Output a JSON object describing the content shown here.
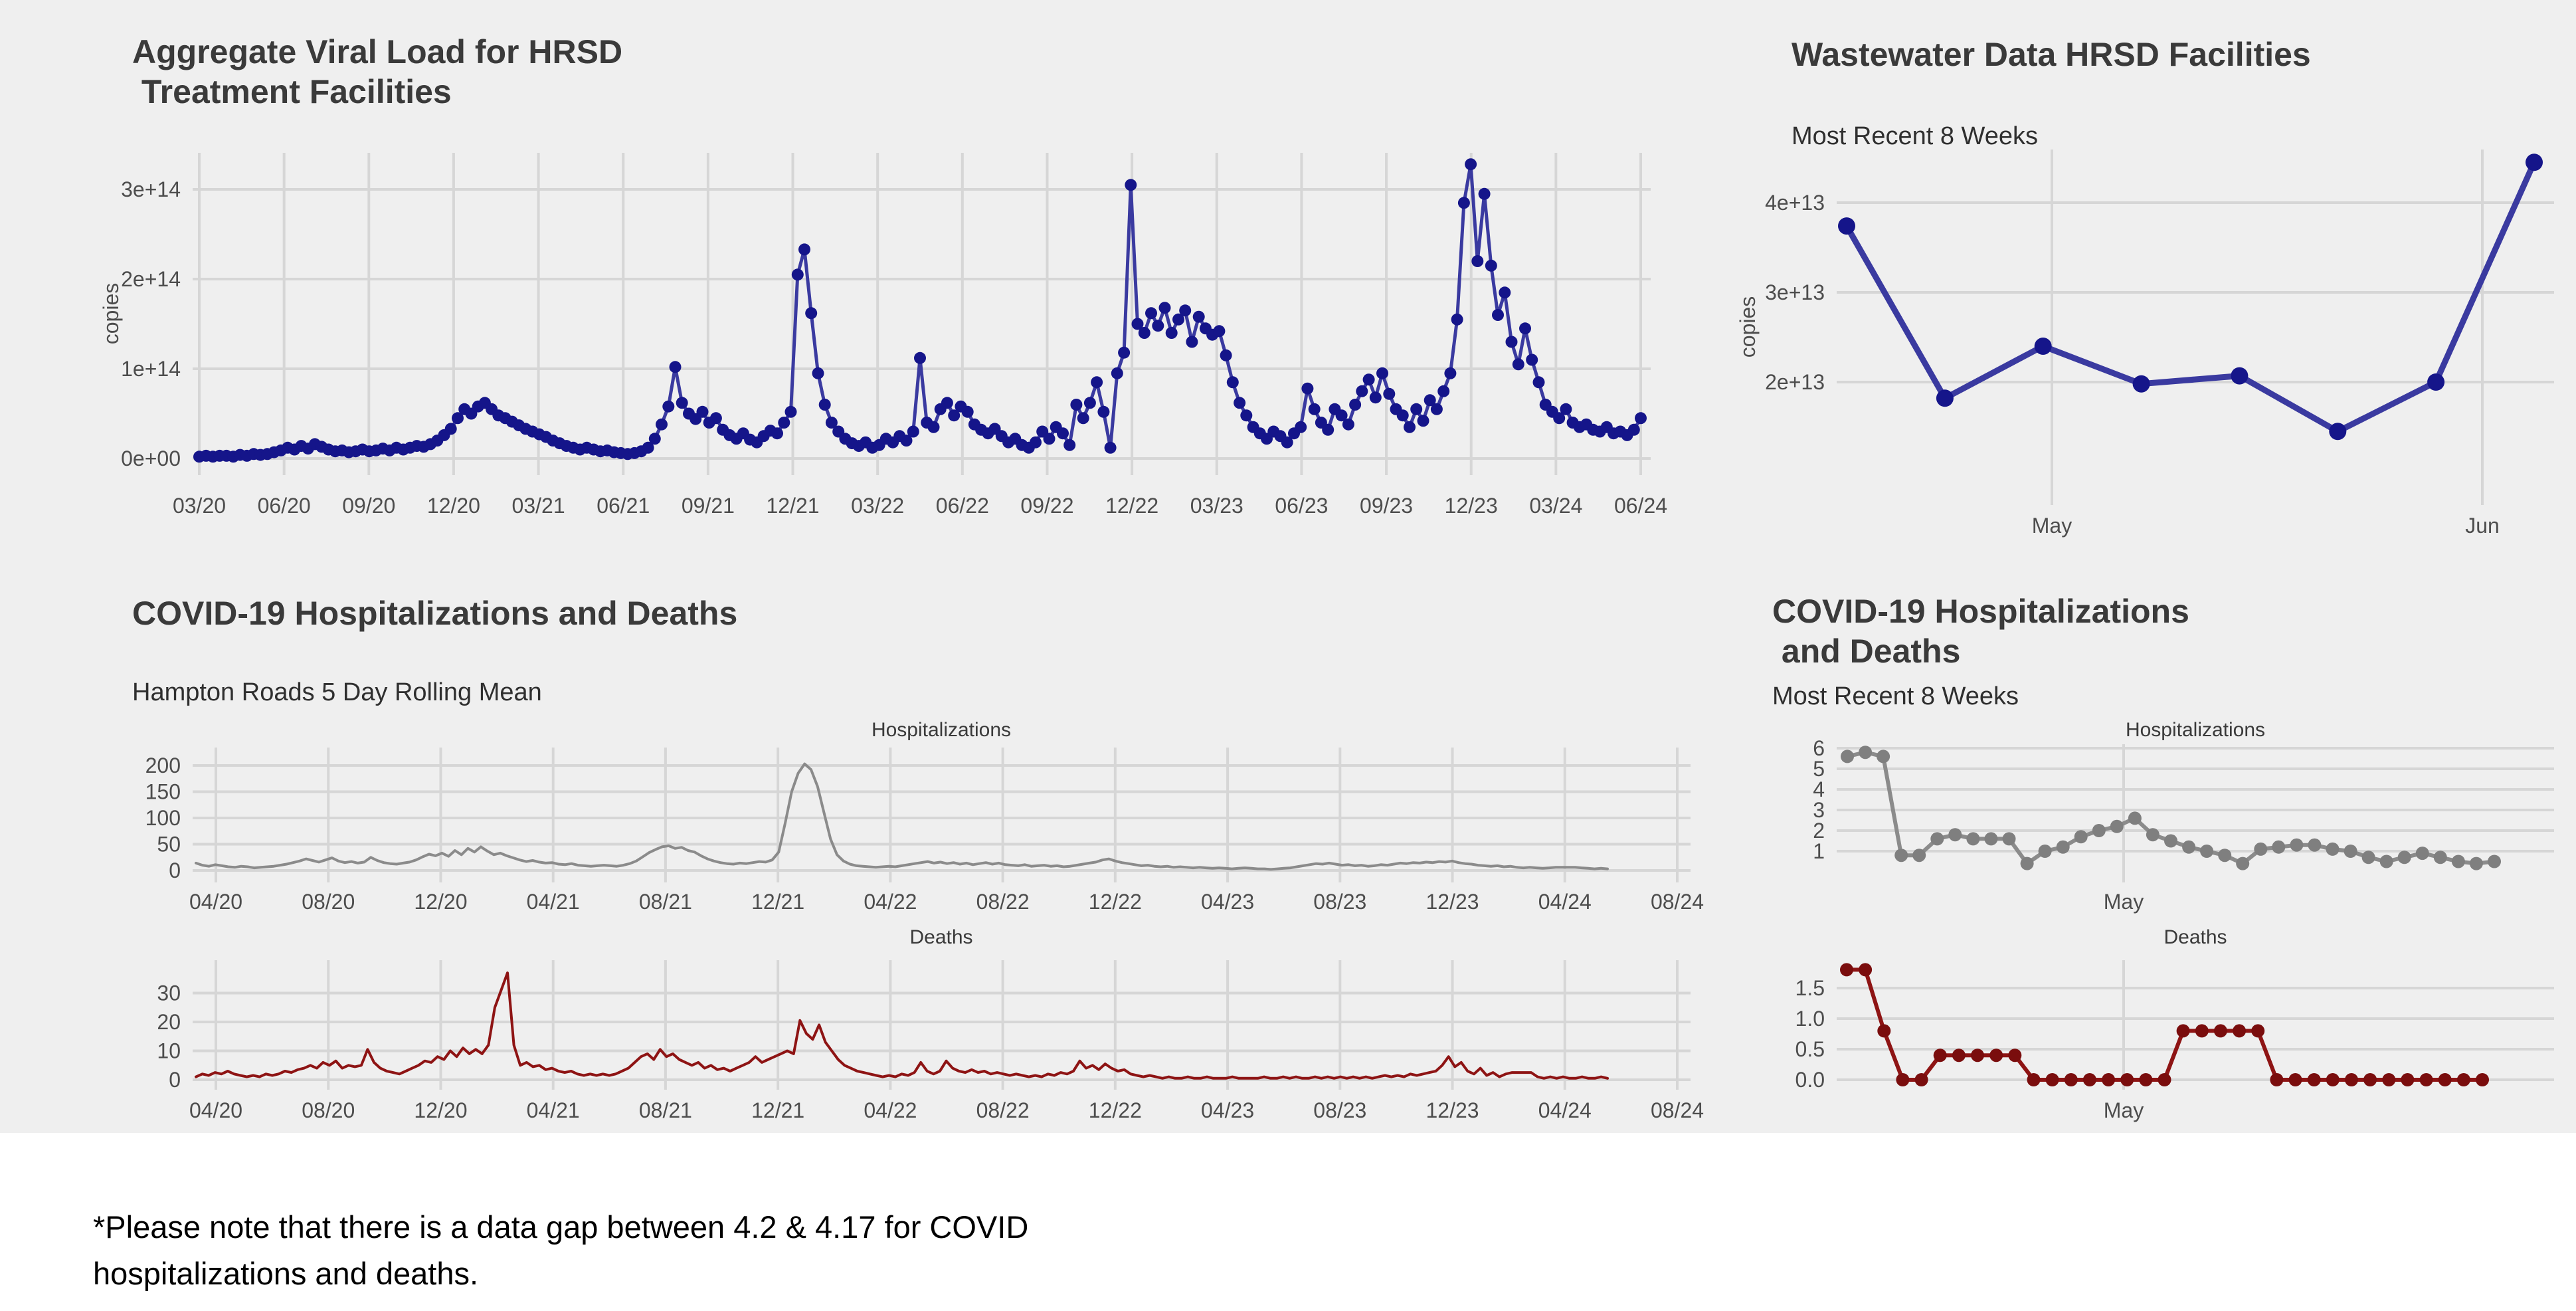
{
  "page": {
    "dashboard_bg": "#efefef",
    "grid_color": "#d6d6d6",
    "title_color": "#3a3a3a",
    "tick_color": "#4d4d4d",
    "navy_line": "#3a3aa0",
    "navy_point": "#15158a",
    "gray_line": "#8b8b8b",
    "gray_point": "#7f7f7f",
    "red_line": "#8e1414",
    "red_point": "#7a0d0d"
  },
  "chart_data": {
    "viral_load": {
      "type": "line",
      "title_line1": "Aggregate Viral Load for HRSD",
      "title_line2": " Treatment Facilities",
      "ylabel": "copies",
      "unit": "1e+14 copies",
      "ylim": [
        0,
        3.4
      ],
      "yticks": [
        {
          "v": 0,
          "label": "0e+00"
        },
        {
          "v": 1,
          "label": "1e+14"
        },
        {
          "v": 2,
          "label": "2e+14"
        },
        {
          "v": 3,
          "label": "3e+14"
        }
      ],
      "xticks": [
        "03/20",
        "06/20",
        "09/20",
        "12/20",
        "03/21",
        "06/21",
        "09/21",
        "12/21",
        "03/22",
        "06/22",
        "09/22",
        "12/22",
        "03/23",
        "06/23",
        "09/23",
        "12/23",
        "03/24",
        "06/24"
      ],
      "values": [
        0.02,
        0.03,
        0.02,
        0.03,
        0.03,
        0.02,
        0.04,
        0.03,
        0.05,
        0.04,
        0.05,
        0.07,
        0.09,
        0.12,
        0.1,
        0.14,
        0.11,
        0.16,
        0.13,
        0.1,
        0.08,
        0.09,
        0.07,
        0.08,
        0.1,
        0.08,
        0.09,
        0.11,
        0.09,
        0.12,
        0.1,
        0.12,
        0.14,
        0.13,
        0.16,
        0.2,
        0.26,
        0.33,
        0.45,
        0.55,
        0.5,
        0.58,
        0.62,
        0.55,
        0.48,
        0.45,
        0.41,
        0.37,
        0.33,
        0.3,
        0.27,
        0.24,
        0.2,
        0.17,
        0.14,
        0.12,
        0.1,
        0.12,
        0.1,
        0.08,
        0.09,
        0.07,
        0.06,
        0.05,
        0.06,
        0.08,
        0.12,
        0.22,
        0.38,
        0.58,
        1.02,
        0.62,
        0.5,
        0.44,
        0.52,
        0.4,
        0.45,
        0.32,
        0.26,
        0.22,
        0.28,
        0.21,
        0.18,
        0.25,
        0.31,
        0.28,
        0.4,
        0.52,
        2.05,
        2.33,
        1.62,
        0.95,
        0.6,
        0.4,
        0.3,
        0.22,
        0.17,
        0.14,
        0.18,
        0.12,
        0.15,
        0.22,
        0.18,
        0.25,
        0.2,
        0.3,
        1.12,
        0.4,
        0.35,
        0.55,
        0.62,
        0.48,
        0.58,
        0.52,
        0.38,
        0.32,
        0.28,
        0.33,
        0.25,
        0.18,
        0.22,
        0.15,
        0.12,
        0.18,
        0.3,
        0.22,
        0.35,
        0.28,
        0.15,
        0.6,
        0.45,
        0.62,
        0.85,
        0.52,
        0.12,
        0.95,
        1.18,
        3.05,
        1.5,
        1.4,
        1.62,
        1.48,
        1.68,
        1.4,
        1.55,
        1.65,
        1.3,
        1.58,
        1.45,
        1.38,
        1.42,
        1.15,
        0.85,
        0.62,
        0.48,
        0.35,
        0.28,
        0.22,
        0.3,
        0.25,
        0.18,
        0.28,
        0.35,
        0.78,
        0.55,
        0.4,
        0.32,
        0.55,
        0.48,
        0.38,
        0.6,
        0.75,
        0.88,
        0.68,
        0.95,
        0.72,
        0.55,
        0.48,
        0.35,
        0.55,
        0.42,
        0.65,
        0.55,
        0.75,
        0.95,
        1.55,
        2.85,
        3.28,
        2.2,
        2.95,
        2.15,
        1.6,
        1.85,
        1.3,
        1.05,
        1.45,
        1.1,
        0.85,
        0.6,
        0.52,
        0.45,
        0.55,
        0.4,
        0.35,
        0.38,
        0.32,
        0.3,
        0.35,
        0.28,
        0.3,
        0.26,
        0.32,
        0.45
      ]
    },
    "wastewater": {
      "type": "line",
      "title": "Wastewater Data HRSD Facilities",
      "subtitle": "Most Recent 8 Weeks",
      "ylabel": "copies",
      "unit": "1e+13 copies",
      "ylim": [
        1.0,
        4.6
      ],
      "yticks": [
        {
          "v": 2,
          "label": "2e+13"
        },
        {
          "v": 3,
          "label": "3e+13"
        },
        {
          "v": 4,
          "label": "4e+13"
        }
      ],
      "xticks": [
        "May",
        "Jun"
      ],
      "values": [
        3.74,
        1.82,
        2.4,
        1.98,
        2.07,
        1.45,
        2.0,
        4.45
      ]
    },
    "covid_hr": {
      "title": "COVID-19 Hospitalizations and Deaths",
      "subtitle": "Hampton Roads 5 Day Rolling Mean",
      "xticks": [
        "04/20",
        "08/20",
        "12/20",
        "04/21",
        "08/21",
        "12/21",
        "04/22",
        "08/22",
        "12/22",
        "04/23",
        "08/23",
        "12/23",
        "04/24",
        "08/24"
      ],
      "hosp": {
        "type": "line",
        "facet": "Hospitalizations",
        "ylim": [
          0,
          230
        ],
        "yticks": [
          {
            "v": 0,
            "label": "0"
          },
          {
            "v": 50,
            "label": "50"
          },
          {
            "v": 100,
            "label": "100"
          },
          {
            "v": 150,
            "label": "150"
          },
          {
            "v": 200,
            "label": "200"
          }
        ],
        "values": [
          14,
          10,
          8,
          11,
          9,
          7,
          6,
          8,
          7,
          5,
          6,
          7,
          8,
          10,
          12,
          15,
          18,
          22,
          19,
          16,
          20,
          24,
          18,
          15,
          17,
          14,
          16,
          25,
          19,
          15,
          13,
          12,
          14,
          16,
          20,
          26,
          31,
          28,
          33,
          27,
          38,
          30,
          42,
          35,
          45,
          37,
          30,
          33,
          28,
          24,
          20,
          17,
          19,
          16,
          14,
          15,
          12,
          11,
          13,
          10,
          9,
          8,
          9,
          10,
          9,
          8,
          10,
          13,
          18,
          26,
          34,
          40,
          45,
          47,
          42,
          44,
          38,
          35,
          28,
          22,
          18,
          15,
          13,
          12,
          14,
          13,
          15,
          17,
          16,
          20,
          35,
          90,
          150,
          185,
          203,
          192,
          160,
          110,
          60,
          30,
          18,
          12,
          9,
          8,
          7,
          6,
          7,
          8,
          7,
          9,
          11,
          13,
          15,
          17,
          14,
          16,
          13,
          15,
          12,
          14,
          11,
          13,
          15,
          12,
          14,
          11,
          10,
          9,
          11,
          8,
          9,
          10,
          8,
          9,
          7,
          8,
          10,
          12,
          14,
          16,
          20,
          22,
          18,
          15,
          13,
          11,
          9,
          10,
          8,
          7,
          8,
          6,
          7,
          6,
          5,
          6,
          5,
          4,
          5,
          4,
          3,
          4,
          5,
          4,
          3,
          3,
          2,
          3,
          4,
          5,
          7,
          9,
          11,
          13,
          12,
          14,
          12,
          10,
          11,
          9,
          10,
          8,
          9,
          11,
          10,
          12,
          14,
          13,
          15,
          14,
          16,
          15,
          17,
          16,
          18,
          15,
          13,
          12,
          10,
          9,
          8,
          9,
          7,
          8,
          6,
          5,
          6,
          5,
          4,
          5,
          6,
          6,
          6,
          6,
          5,
          4,
          3,
          4,
          3
        ]
      },
      "deaths": {
        "type": "line",
        "facet": "Deaths",
        "ylim": [
          0,
          40
        ],
        "yticks": [
          {
            "v": 0,
            "label": "0"
          },
          {
            "v": 10,
            "label": "10"
          },
          {
            "v": 20,
            "label": "20"
          },
          {
            "v": 30,
            "label": "30"
          }
        ],
        "values": [
          1,
          2,
          1.5,
          2.5,
          2,
          3,
          2,
          1.5,
          1,
          1.5,
          1,
          2,
          1.5,
          2,
          3,
          2.5,
          3.5,
          4,
          5,
          4,
          6,
          5,
          6.5,
          4,
          5,
          4.5,
          5,
          10.5,
          6,
          4,
          3,
          2.5,
          2,
          3,
          4,
          5,
          6.5,
          6,
          8,
          7,
          10,
          8,
          11,
          9,
          10.5,
          9,
          12,
          25,
          31,
          37,
          12,
          5,
          6,
          4.5,
          5,
          3.5,
          4,
          3,
          2.5,
          3,
          2,
          1.5,
          2,
          1.5,
          2,
          1.5,
          2,
          3,
          4,
          6,
          8,
          9,
          7,
          10.5,
          8,
          9,
          7,
          6,
          5,
          6,
          4,
          5,
          3.5,
          4,
          3,
          4,
          5,
          6,
          8,
          6,
          7,
          8,
          9,
          10,
          9,
          20.5,
          16,
          14,
          19,
          13,
          10,
          7,
          5,
          4,
          3,
          2.5,
          2,
          1.5,
          1,
          1.5,
          1,
          2,
          1.5,
          2.5,
          6,
          3,
          2,
          3,
          6.5,
          4,
          3,
          2.5,
          3.5,
          2.5,
          3,
          2,
          2.5,
          2,
          1.5,
          2,
          1.5,
          1,
          1.5,
          1,
          2,
          1.5,
          2.5,
          2,
          3,
          6.5,
          4,
          5,
          3.5,
          5.5,
          4,
          3,
          3.5,
          2,
          1.5,
          1,
          1.5,
          1,
          0.5,
          1,
          0.5,
          0.5,
          1,
          0.5,
          0.5,
          1,
          0.5,
          0.5,
          0.5,
          1,
          0.5,
          0.5,
          0.5,
          0.5,
          1,
          0.5,
          0.5,
          1,
          0.5,
          1,
          0.5,
          0.5,
          1,
          0.5,
          1,
          0.5,
          1,
          0.5,
          1,
          0.5,
          1,
          0.5,
          1,
          1.5,
          1,
          1.5,
          1,
          2,
          1.5,
          2,
          2.5,
          3,
          5,
          8,
          4.5,
          6,
          3,
          2,
          4,
          1.5,
          2.5,
          1,
          2,
          2.5,
          2.5,
          2.5,
          2.5,
          1,
          0.5,
          1,
          0.5,
          1,
          0.5,
          0.5,
          1,
          0.5,
          0.5,
          1,
          0.5
        ]
      }
    },
    "covid_recent": {
      "title_line1": "COVID-19 Hospitalizations",
      "title_line2": " and Deaths",
      "subtitle": "Most Recent 8 Weeks",
      "xticks": [
        "May"
      ],
      "hosp": {
        "type": "line",
        "facet": "Hospitalizations",
        "ylim": [
          0,
          6.5
        ],
        "yticks": [
          {
            "v": 1,
            "label": "1"
          },
          {
            "v": 2,
            "label": "2"
          },
          {
            "v": 3,
            "label": "3"
          },
          {
            "v": 4,
            "label": "4"
          },
          {
            "v": 5,
            "label": "5"
          },
          {
            "v": 6,
            "label": "6"
          }
        ],
        "values": [
          5.6,
          5.8,
          5.6,
          0.8,
          0.8,
          1.6,
          1.8,
          1.6,
          1.6,
          1.6,
          0.4,
          1.0,
          1.2,
          1.7,
          2.0,
          2.2,
          2.6,
          1.8,
          1.5,
          1.2,
          1.0,
          0.8,
          0.4,
          1.1,
          1.2,
          1.3,
          1.3,
          1.1,
          1.0,
          0.7,
          0.5,
          0.7,
          0.9,
          0.7,
          0.5,
          0.4,
          0.5
        ]
      },
      "deaths": {
        "type": "line",
        "facet": "Deaths",
        "ylim": [
          0,
          2.0
        ],
        "yticks": [
          {
            "v": 0,
            "label": "0.0"
          },
          {
            "v": 0.5,
            "label": "0.5"
          },
          {
            "v": 1,
            "label": "1.0"
          },
          {
            "v": 1.5,
            "label": "1.5"
          }
        ],
        "values": [
          1.8,
          1.8,
          0.8,
          0,
          0,
          0.4,
          0.4,
          0.4,
          0.4,
          0.4,
          0,
          0,
          0,
          0,
          0,
          0,
          0,
          0,
          0.8,
          0.8,
          0.8,
          0.8,
          0.8,
          0,
          0,
          0,
          0,
          0,
          0,
          0,
          0,
          0,
          0,
          0,
          0
        ]
      }
    }
  },
  "footnote": "*Please note that there is a data gap between 4.2 & 4.17 for COVID hospitalizations and deaths."
}
